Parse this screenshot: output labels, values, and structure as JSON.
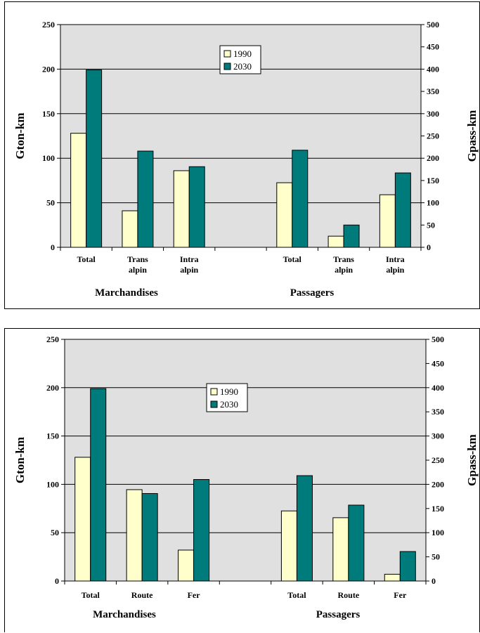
{
  "chart_data": [
    {
      "type": "bar",
      "series": [
        {
          "name": "1990",
          "color": "#ffffcc",
          "values": [
            128,
            41,
            86,
            null,
            72.5,
            12.5,
            59
          ]
        },
        {
          "name": "2030",
          "color": "#007b7b",
          "values": [
            199,
            108,
            90.5,
            null,
            109,
            25,
            83.5
          ]
        }
      ],
      "categories": [
        [
          "Total"
        ],
        [
          "Trans",
          "alpin"
        ],
        [
          "Intra",
          "alpin"
        ],
        [
          ""
        ],
        [
          "Total"
        ],
        [
          "Trans",
          "alpin"
        ],
        [
          "Intra",
          "alpin"
        ]
      ],
      "groups": [
        "Marchandises",
        "Passagers"
      ],
      "left_axis": {
        "label": "Gton-km",
        "ylim": [
          0,
          250
        ],
        "ticks": [
          "0",
          "50",
          "100",
          "150",
          "200",
          "250"
        ]
      },
      "right_axis": {
        "label": "Gpass-km",
        "ylim": [
          0,
          500
        ],
        "ticks": [
          "0",
          "50",
          "100",
          "150",
          "200",
          "250",
          "300",
          "350",
          "400",
          "450",
          "500"
        ]
      },
      "grid": true,
      "legend": "top-center"
    },
    {
      "type": "bar",
      "series": [
        {
          "name": "1990",
          "color": "#ffffcc",
          "values": [
            128,
            94.5,
            32,
            null,
            72.5,
            65.5,
            7
          ]
        },
        {
          "name": "2030",
          "color": "#007b7b",
          "values": [
            199,
            90.5,
            105,
            null,
            109,
            78.5,
            30.5
          ]
        }
      ],
      "categories": [
        [
          "Total"
        ],
        [
          "Route"
        ],
        [
          "Fer"
        ],
        [
          ""
        ],
        [
          "Total"
        ],
        [
          "Route"
        ],
        [
          "Fer"
        ]
      ],
      "groups": [
        "Marchandises",
        "Passagers"
      ],
      "left_axis": {
        "label": "Gton-km",
        "ylim": [
          0,
          250
        ],
        "ticks": [
          "0",
          "50",
          "100",
          "150",
          "200",
          "250"
        ]
      },
      "right_axis": {
        "label": "Gpass-km",
        "ylim": [
          0,
          500
        ],
        "ticks": [
          "0",
          "50",
          "100",
          "150",
          "200",
          "250",
          "300",
          "350",
          "400",
          "450",
          "500"
        ]
      },
      "grid": true,
      "legend": "top-center"
    }
  ]
}
